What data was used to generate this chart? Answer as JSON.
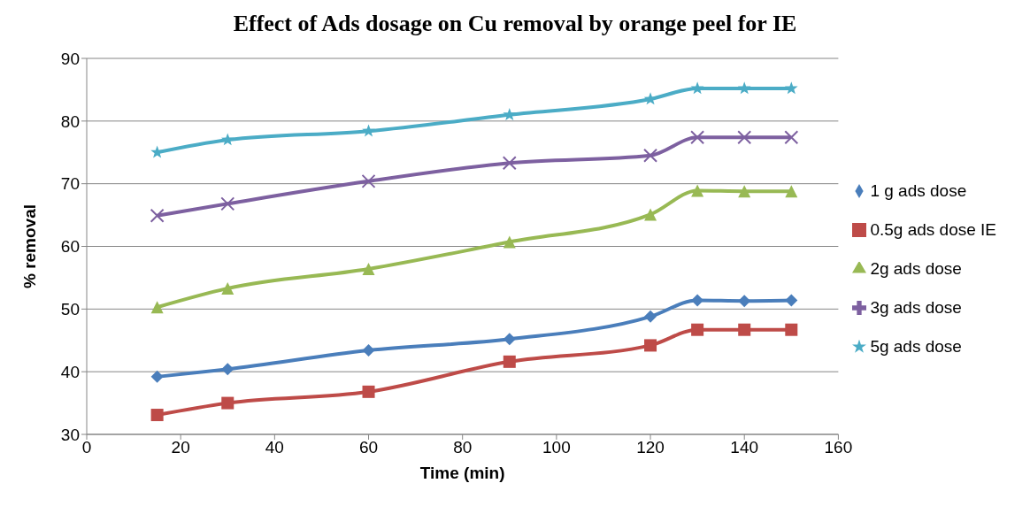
{
  "chart_data": {
    "type": "line",
    "title": "Effect of Ads dosage on Cu removal by orange peel for IE",
    "xlabel": "Time (min)",
    "ylabel": "% removal",
    "x": [
      15,
      30,
      60,
      90,
      120,
      130,
      140,
      150
    ],
    "xlim": [
      0,
      160
    ],
    "xticks": [
      0,
      20,
      40,
      60,
      80,
      100,
      120,
      140,
      160
    ],
    "ylim": [
      30,
      90
    ],
    "yticks": [
      30,
      40,
      50,
      60,
      70,
      80,
      90
    ],
    "grid": "y",
    "legend": "right",
    "series": [
      {
        "name": "1 g ads dose",
        "color": "#4a7ebb",
        "marker": "diamond",
        "values": [
          39.2,
          40.4,
          43.4,
          45.2,
          48.8,
          51.4,
          51.3,
          51.4
        ]
      },
      {
        "name": "0.5g ads dose IE",
        "color": "#be4b48",
        "marker": "square",
        "values": [
          33.1,
          35,
          36.8,
          41.6,
          44.2,
          46.7,
          46.7,
          46.7
        ]
      },
      {
        "name": "2g ads dose",
        "color": "#98b954",
        "marker": "triangle",
        "values": [
          50.3,
          53.3,
          56.4,
          60.7,
          65.1,
          68.9,
          68.8,
          68.8
        ]
      },
      {
        "name": "3g ads dose",
        "color": "#7d60a0",
        "marker": "cross",
        "values": [
          64.9,
          66.8,
          70.4,
          73.3,
          74.5,
          77.4,
          77.4,
          77.4
        ]
      },
      {
        "name": "5g ads dose",
        "color": "#4bacc6",
        "marker": "star",
        "values": [
          75,
          77,
          78.4,
          81,
          83.5,
          85.2,
          85.2,
          85.2
        ]
      }
    ]
  }
}
